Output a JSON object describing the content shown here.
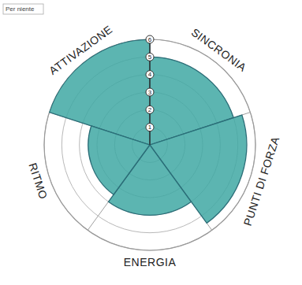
{
  "chart_data": {
    "type": "polar_area",
    "categories": [
      "ATTIVAZIONE",
      "SINCRONIA",
      "PUNTI DI FORZA",
      "ENERGIA",
      "RITMO"
    ],
    "values": [
      6,
      5,
      5.5,
      4,
      3.5
    ],
    "color": "#3fa8a3",
    "ylim": [
      0,
      6
    ],
    "yticks": [
      1,
      2,
      3,
      4,
      5,
      6
    ],
    "grid": true,
    "annotation": "Per niente"
  }
}
